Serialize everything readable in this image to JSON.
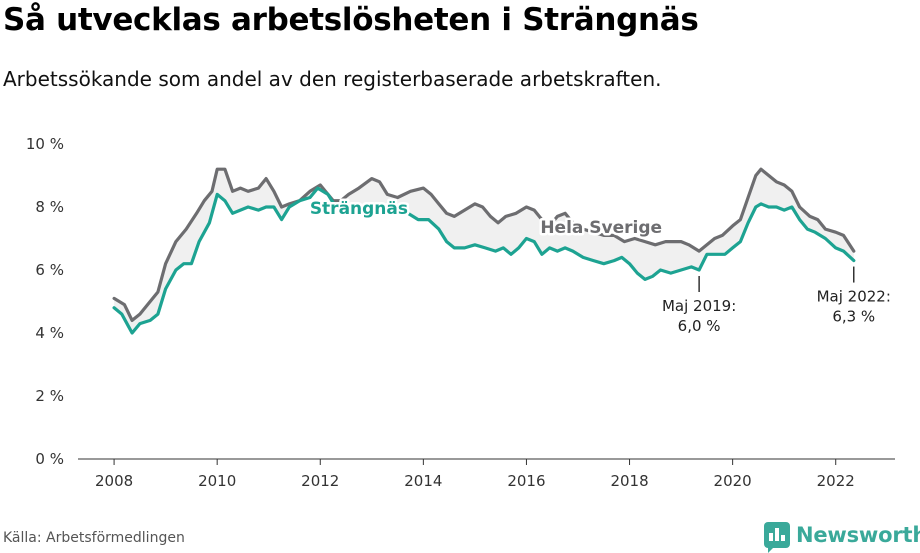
{
  "header": {
    "title": "Så utvecklas arbetslösheten i Strängnäs",
    "subtitle": "Arbetssökande som andel av den registerbaserade arbetskraften."
  },
  "footer": {
    "source": "Källa: Arbetsförmedlingen",
    "brand": "Newsworthy",
    "brand_color": "#3aa99a"
  },
  "chart_data": {
    "type": "line",
    "title": "Så utvecklas arbetslösheten i Strängnäs",
    "subtitle": "Arbetssökande som andel av den registerbaserade arbetskraften.",
    "xlabel": "",
    "ylabel": "",
    "xlim": [
      2007.3,
      2023.15
    ],
    "ylim": [
      0,
      10
    ],
    "grid": false,
    "x_ticks": [
      2008,
      2010,
      2012,
      2014,
      2016,
      2018,
      2020,
      2022
    ],
    "x_tick_labels": [
      "2008",
      "2010",
      "2012",
      "2014",
      "2016",
      "2018",
      "2020",
      "2022"
    ],
    "y_ticks": [
      0,
      2,
      4,
      6,
      8,
      10
    ],
    "y_tick_labels": [
      "0 %",
      "2 %",
      "4 %",
      "6 %",
      "8 %",
      "10 %"
    ],
    "series": [
      {
        "name": "Hela Sverige",
        "color": "#6d6d70",
        "points": [
          [
            2008.0,
            5.1
          ],
          [
            2008.2,
            4.9
          ],
          [
            2008.35,
            4.4
          ],
          [
            2008.5,
            4.6
          ],
          [
            2008.65,
            4.9
          ],
          [
            2008.85,
            5.3
          ],
          [
            2009.0,
            6.2
          ],
          [
            2009.2,
            6.9
          ],
          [
            2009.4,
            7.3
          ],
          [
            2009.6,
            7.8
          ],
          [
            2009.75,
            8.2
          ],
          [
            2009.9,
            8.5
          ],
          [
            2010.0,
            9.2
          ],
          [
            2010.15,
            9.2
          ],
          [
            2010.3,
            8.5
          ],
          [
            2010.45,
            8.6
          ],
          [
            2010.6,
            8.5
          ],
          [
            2010.8,
            8.6
          ],
          [
            2010.95,
            8.9
          ],
          [
            2011.1,
            8.5
          ],
          [
            2011.25,
            8.0
          ],
          [
            2011.4,
            8.1
          ],
          [
            2011.6,
            8.2
          ],
          [
            2011.8,
            8.5
          ],
          [
            2012.0,
            8.7
          ],
          [
            2012.1,
            8.5
          ],
          [
            2012.25,
            8.2
          ],
          [
            2012.4,
            8.2
          ],
          [
            2012.55,
            8.4
          ],
          [
            2012.75,
            8.6
          ],
          [
            2013.0,
            8.9
          ],
          [
            2013.15,
            8.8
          ],
          [
            2013.3,
            8.4
          ],
          [
            2013.5,
            8.3
          ],
          [
            2013.75,
            8.5
          ],
          [
            2014.0,
            8.6
          ],
          [
            2014.15,
            8.4
          ],
          [
            2014.3,
            8.1
          ],
          [
            2014.45,
            7.8
          ],
          [
            2014.6,
            7.7
          ],
          [
            2014.8,
            7.9
          ],
          [
            2015.0,
            8.1
          ],
          [
            2015.15,
            8.0
          ],
          [
            2015.3,
            7.7
          ],
          [
            2015.45,
            7.5
          ],
          [
            2015.6,
            7.7
          ],
          [
            2015.8,
            7.8
          ],
          [
            2016.0,
            8.0
          ],
          [
            2016.15,
            7.9
          ],
          [
            2016.3,
            7.6
          ],
          [
            2016.45,
            7.4
          ],
          [
            2016.6,
            7.7
          ],
          [
            2016.75,
            7.8
          ],
          [
            2016.9,
            7.5
          ],
          [
            2017.1,
            7.3
          ],
          [
            2017.3,
            7.2
          ],
          [
            2017.5,
            7.1
          ],
          [
            2017.7,
            7.1
          ],
          [
            2017.9,
            6.9
          ],
          [
            2018.1,
            7.0
          ],
          [
            2018.3,
            6.9
          ],
          [
            2018.5,
            6.8
          ],
          [
            2018.7,
            6.9
          ],
          [
            2019.0,
            6.9
          ],
          [
            2019.15,
            6.8
          ],
          [
            2019.35,
            6.6
          ],
          [
            2019.5,
            6.8
          ],
          [
            2019.65,
            7.0
          ],
          [
            2019.8,
            7.1
          ],
          [
            2020.0,
            7.4
          ],
          [
            2020.15,
            7.6
          ],
          [
            2020.3,
            8.3
          ],
          [
            2020.45,
            9.0
          ],
          [
            2020.55,
            9.2
          ],
          [
            2020.7,
            9.0
          ],
          [
            2020.85,
            8.8
          ],
          [
            2021.0,
            8.7
          ],
          [
            2021.15,
            8.5
          ],
          [
            2021.3,
            8.0
          ],
          [
            2021.5,
            7.7
          ],
          [
            2021.65,
            7.6
          ],
          [
            2021.8,
            7.3
          ],
          [
            2022.0,
            7.2
          ],
          [
            2022.15,
            7.1
          ],
          [
            2022.35,
            6.6
          ]
        ]
      },
      {
        "name": "Strängnäs",
        "color": "#1da392",
        "points": [
          [
            2008.0,
            4.8
          ],
          [
            2008.15,
            4.6
          ],
          [
            2008.35,
            4.0
          ],
          [
            2008.5,
            4.3
          ],
          [
            2008.7,
            4.4
          ],
          [
            2008.85,
            4.6
          ],
          [
            2009.0,
            5.4
          ],
          [
            2009.2,
            6.0
          ],
          [
            2009.35,
            6.2
          ],
          [
            2009.5,
            6.2
          ],
          [
            2009.65,
            6.9
          ],
          [
            2009.85,
            7.5
          ],
          [
            2010.0,
            8.4
          ],
          [
            2010.15,
            8.2
          ],
          [
            2010.3,
            7.8
          ],
          [
            2010.45,
            7.9
          ],
          [
            2010.6,
            8.0
          ],
          [
            2010.8,
            7.9
          ],
          [
            2010.95,
            8.0
          ],
          [
            2011.1,
            8.0
          ],
          [
            2011.25,
            7.6
          ],
          [
            2011.4,
            8.0
          ],
          [
            2011.6,
            8.2
          ],
          [
            2011.8,
            8.3
          ],
          [
            2011.95,
            8.6
          ],
          [
            2012.15,
            8.4
          ],
          [
            2012.3,
            8.0
          ],
          [
            2012.5,
            8.0
          ],
          [
            2012.7,
            7.9
          ],
          [
            2012.9,
            8.0
          ],
          [
            2013.1,
            8.0
          ],
          [
            2013.3,
            7.9
          ],
          [
            2013.5,
            7.9
          ],
          [
            2013.7,
            7.8
          ],
          [
            2013.9,
            7.6
          ],
          [
            2014.1,
            7.6
          ],
          [
            2014.3,
            7.3
          ],
          [
            2014.45,
            6.9
          ],
          [
            2014.6,
            6.7
          ],
          [
            2014.8,
            6.7
          ],
          [
            2015.0,
            6.8
          ],
          [
            2015.2,
            6.7
          ],
          [
            2015.4,
            6.6
          ],
          [
            2015.55,
            6.7
          ],
          [
            2015.7,
            6.5
          ],
          [
            2015.85,
            6.7
          ],
          [
            2016.0,
            7.0
          ],
          [
            2016.15,
            6.9
          ],
          [
            2016.3,
            6.5
          ],
          [
            2016.45,
            6.7
          ],
          [
            2016.6,
            6.6
          ],
          [
            2016.75,
            6.7
          ],
          [
            2016.9,
            6.6
          ],
          [
            2017.1,
            6.4
          ],
          [
            2017.3,
            6.3
          ],
          [
            2017.5,
            6.2
          ],
          [
            2017.7,
            6.3
          ],
          [
            2017.85,
            6.4
          ],
          [
            2018.0,
            6.2
          ],
          [
            2018.15,
            5.9
          ],
          [
            2018.3,
            5.7
          ],
          [
            2018.45,
            5.8
          ],
          [
            2018.6,
            6.0
          ],
          [
            2018.8,
            5.9
          ],
          [
            2019.0,
            6.0
          ],
          [
            2019.2,
            6.1
          ],
          [
            2019.35,
            6.0
          ],
          [
            2019.5,
            6.5
          ],
          [
            2019.7,
            6.5
          ],
          [
            2019.85,
            6.5
          ],
          [
            2020.0,
            6.7
          ],
          [
            2020.15,
            6.9
          ],
          [
            2020.3,
            7.5
          ],
          [
            2020.45,
            8.0
          ],
          [
            2020.55,
            8.1
          ],
          [
            2020.7,
            8.0
          ],
          [
            2020.85,
            8.0
          ],
          [
            2021.0,
            7.9
          ],
          [
            2021.15,
            8.0
          ],
          [
            2021.3,
            7.6
          ],
          [
            2021.45,
            7.3
          ],
          [
            2021.6,
            7.2
          ],
          [
            2021.8,
            7.0
          ],
          [
            2022.0,
            6.7
          ],
          [
            2022.15,
            6.6
          ],
          [
            2022.35,
            6.3
          ]
        ]
      }
    ],
    "series_labels": [
      {
        "text": "Strängnäs",
        "x": 2012.75,
        "y": 7.77,
        "color": "#1da392"
      },
      {
        "text": "Hela Sverige",
        "x": 2017.45,
        "y": 7.17,
        "color": "#6d6d70"
      }
    ],
    "annotations": [
      {
        "lines": [
          "Maj 2019:",
          "6,0 %"
        ],
        "x": 2019.35,
        "y": 6.0
      },
      {
        "lines": [
          "Maj 2022:",
          "6,3 %"
        ],
        "x": 2022.35,
        "y": 6.3
      }
    ]
  }
}
